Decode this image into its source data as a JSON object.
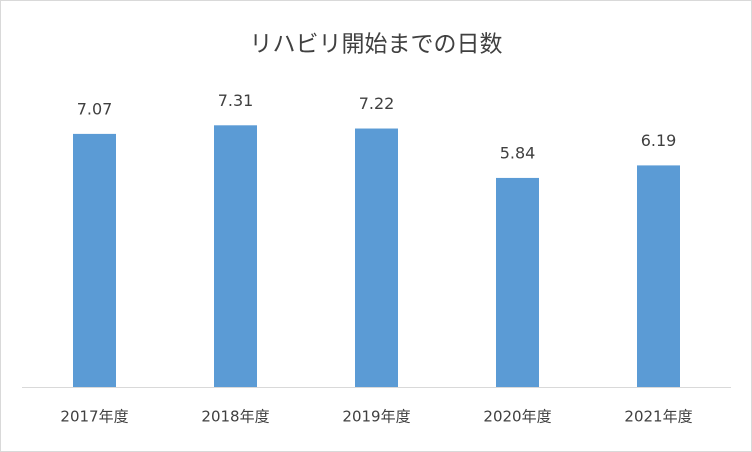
{
  "chart_data": {
    "type": "bar",
    "title": "リハビリ開始までの日数",
    "categories": [
      "2017年度",
      "2018年度",
      "2019年度",
      "2020年度",
      "2021年度"
    ],
    "values": [
      7.07,
      7.31,
      7.22,
      5.84,
      6.19
    ],
    "color": "#5b9bd5",
    "data_labels": true
  }
}
